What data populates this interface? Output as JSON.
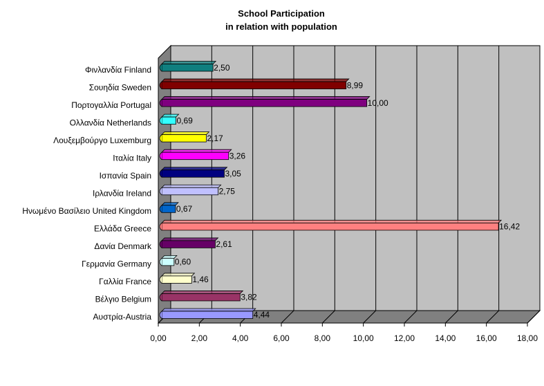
{
  "chart_data": {
    "type": "bar",
    "orientation": "horizontal",
    "title": "School Participation",
    "subtitle": "in relation with population",
    "categories": [
      "Φινλανδία Finland",
      "Σουηδία Sweden",
      "Πορτογαλλία Portugal",
      "Ολλανδία Netherlands",
      "Λουξεμβούργο Luxemburg",
      "Ιταλία Italy",
      "Ισπανία Spain",
      "Ιρλανδία Ireland",
      "Ηνωμένο Βασίλειο United Kingdom",
      "Ελλάδα Greece",
      "Δανία Denmark",
      "Γερμανία Germany",
      "Γαλλία France",
      "Βέλγιο Belgium",
      "Αυστρία-Austria"
    ],
    "values": [
      2.5,
      8.99,
      10.0,
      0.69,
      2.17,
      3.26,
      3.05,
      2.75,
      0.67,
      16.42,
      2.61,
      0.6,
      1.46,
      3.82,
      4.44
    ],
    "value_labels": [
      "2,50",
      "8,99",
      "10,00",
      "0,69",
      "2,17",
      "3,26",
      "3,05",
      "2,75",
      "0,67",
      "16,42",
      "2,61",
      "0,60",
      "1,46",
      "3,82",
      "4,44"
    ],
    "bar_colors": [
      "#0f7f7f",
      "#800000",
      "#7f007f",
      "#33ffff",
      "#ffff00",
      "#ff00ff",
      "#000080",
      "#c0c0ff",
      "#0066cc",
      "#ff8080",
      "#660066",
      "#ccffff",
      "#ffffcc",
      "#993366",
      "#9999ff"
    ],
    "x_ticks": [
      "0,00",
      "2,00",
      "4,00",
      "6,00",
      "8,00",
      "10,00",
      "12,00",
      "14,00",
      "16,00",
      "18,00"
    ],
    "xlim": [
      0,
      18
    ],
    "xlabel": "",
    "ylabel": "",
    "grid": true,
    "legend": "none",
    "wall_color": "#c0c0c0"
  }
}
